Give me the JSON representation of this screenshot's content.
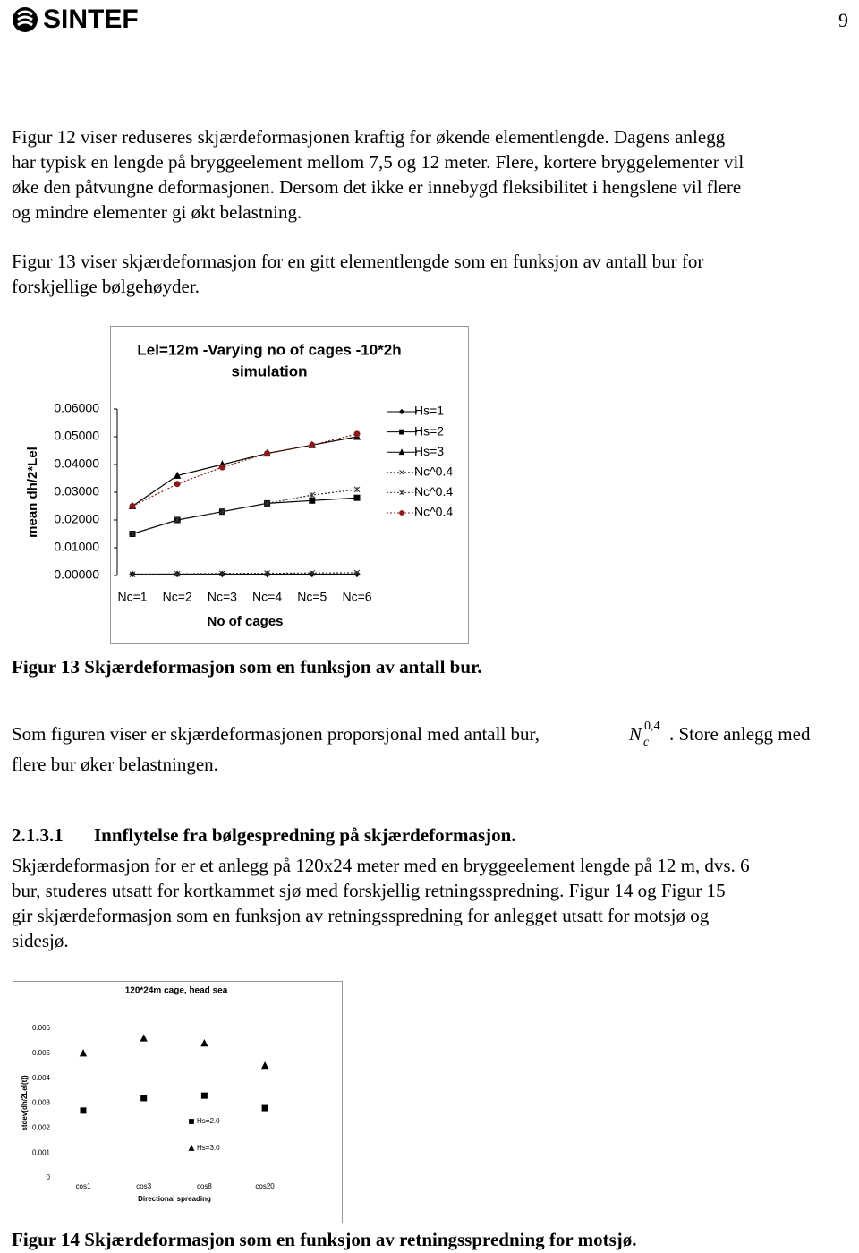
{
  "header": {
    "logo": "SINTEF",
    "page_number": "9"
  },
  "paragraphs": [
    [
      "Figur 12 viser reduseres skjærdeformasjonen kraftig for økende elementlengde. Dagens anlegg",
      "har typisk en lengde på bryggeelement mellom 7,5 og 12 meter. Flere, kortere bryggelementer vil",
      "øke den påtvungne deformasjonen. Dersom det ikke er innebygd fleksibilitet i hengslene vil flere",
      "og mindre elementer gi økt belastning."
    ],
    [
      "Figur 13 viser skjærdeformasjon for en gitt elementlengde som en funksjon av antall bur for",
      "forskjellige bølgehøyder."
    ]
  ],
  "figure13": {
    "chart_data": {
      "type": "line",
      "title": [
        "Lel=12m -Varying no of cages -10*2h",
        "simulation"
      ],
      "y_label": "mean dh/2*Lel",
      "x_label": "No of cages",
      "categories": [
        "Nc=1",
        "Nc=2",
        "Nc=3",
        "Nc=4",
        "Nc=5",
        "Nc=6"
      ],
      "series": [
        {
          "name": "Hs=1",
          "color": "#000000",
          "marker": "diamond",
          "line_style": "solid",
          "values": [
            0.0005,
            0.0005,
            0.0005,
            0.0005,
            0.0005,
            0.0005
          ]
        },
        {
          "name": "Hs=2",
          "color": "#000000",
          "marker": "square",
          "line_style": "solid",
          "values": [
            0.015,
            0.02,
            0.023,
            0.026,
            0.027,
            0.028
          ]
        },
        {
          "name": "Hs=3",
          "color": "#000000",
          "marker": "triangle",
          "line_style": "solid",
          "values": [
            0.025,
            0.036,
            0.04,
            0.044,
            0.047,
            0.05
          ]
        },
        {
          "name": "Nc^0.4",
          "color": "#333333",
          "marker": "x",
          "line_style": "dotted",
          "values": [
            0.0004,
            0.0006,
            0.0007,
            0.0008,
            0.0009,
            0.001
          ]
        },
        {
          "name": "Nc^0.4",
          "color": "#333333",
          "marker": "star",
          "line_style": "dotted",
          "values": [
            0.015,
            0.02,
            0.023,
            0.026,
            0.029,
            0.031
          ]
        },
        {
          "name": "Nc^0.4",
          "color": "#8b1a1a",
          "marker": "circle",
          "line_style": "dotted",
          "values": [
            0.025,
            0.033,
            0.039,
            0.044,
            0.047,
            0.051
          ]
        }
      ],
      "ylim": [
        0,
        0.06
      ],
      "yticks": [
        {
          "value": 0,
          "label": "0.00000"
        },
        {
          "value": 0.01,
          "label": "0.01000"
        },
        {
          "value": 0.02,
          "label": "0.02000"
        },
        {
          "value": 0.03,
          "label": "0.03000"
        },
        {
          "value": 0.04,
          "label": "0.04000"
        },
        {
          "value": 0.05,
          "label": "0.05000"
        },
        {
          "value": 0.06,
          "label": "0.06000"
        }
      ],
      "legend": "right"
    },
    "caption": "Figur 13 Skjærdeformasjon som en funksjon av antall bur."
  },
  "formula_paragraph": {
    "before": "Som figuren viser er skjærdeformasjonen proporsjonal med antall bur,",
    "formula": {
      "base": "N",
      "sub": "c",
      "sup": "0,4"
    },
    "after": ". Store anlegg med",
    "line2": "flere bur øker belastningen."
  },
  "section": {
    "number": "2.1.3.1",
    "title": "Innflytelse fra bølgespredning på skjærdeformasjon.",
    "paragraph": [
      "Skjærdeformasjon for er et anlegg på 120x24 meter med en bryggeelement lengde på 12 m, dvs. 6",
      "bur,  studeres utsatt for kortkammet sjø med forskjellig retningsspredning. Figur 14 og Figur 15",
      "gir skjærdeformasjon som en funksjon av retningsspredning for anlegget utsatt for motsjø og",
      "sidesjø."
    ]
  },
  "figure14": {
    "chart_data": {
      "type": "scatter",
      "title": "120*24m cage, head sea",
      "y_label": "stdev(dh/2Lel(t))",
      "x_label": "Directional spreading",
      "categories": [
        "cos1",
        "cos3",
        "cos8",
        "cos20"
      ],
      "series": [
        {
          "name": "Hs=2.0",
          "color": "#000000",
          "marker": "square",
          "values": [
            0.0027,
            0.0032,
            0.0033,
            0.0028
          ]
        },
        {
          "name": "Hs=3.0",
          "color": "#000000",
          "marker": "triangle",
          "values": [
            0.005,
            0.0056,
            0.0054,
            0.0045
          ]
        }
      ],
      "ylim": [
        0,
        0.006
      ],
      "yticks": [
        0,
        0.001,
        0.002,
        0.003,
        0.004,
        0.005,
        0.006
      ],
      "legend": "inside"
    },
    "caption": "Figur 14 Skjærdeformasjon som en funksjon av retningsspredning for motsjø."
  }
}
